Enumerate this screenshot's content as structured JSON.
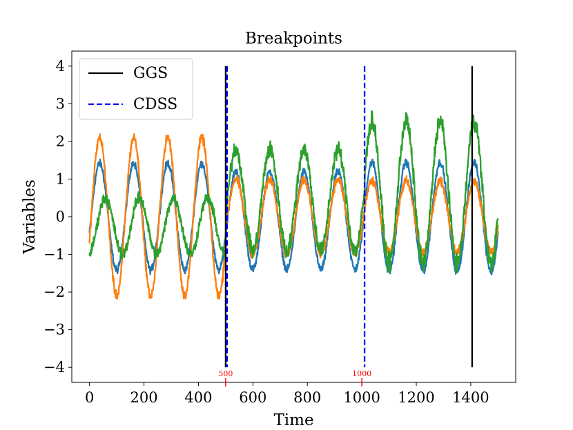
{
  "chart_data": {
    "type": "line",
    "title": "Breakpoints",
    "xlabel": "Time",
    "ylabel": "Variables",
    "xlim": [
      -65,
      1565
    ],
    "ylim": [
      -4.4,
      4.4
    ],
    "xticks": [
      0,
      200,
      400,
      600,
      800,
      1000,
      1200,
      1400
    ],
    "yticks": [
      -4,
      -3,
      -2,
      -1,
      0,
      1,
      2,
      3,
      4
    ],
    "xtick_labels": [
      "0",
      "200",
      "400",
      "600",
      "800",
      "1000",
      "1200",
      "1400"
    ],
    "ytick_labels": [
      "−4",
      "−3",
      "−2",
      "−1",
      "0",
      "1",
      "2",
      "3",
      "4"
    ],
    "legend": {
      "location": "upper-left",
      "entries": [
        {
          "label": "GGS",
          "color": "#000000",
          "style": "solid"
        },
        {
          "label": "CDSS",
          "color": "#0000ff",
          "style": "dashed"
        }
      ]
    },
    "breakpoints": [
      {
        "method": "GGS",
        "x": 500,
        "color": "#000000",
        "style": "solid",
        "y_range": [
          -4,
          4
        ]
      },
      {
        "method": "GGS",
        "x": 1405,
        "color": "#000000",
        "style": "solid",
        "y_range": [
          -4,
          4
        ]
      },
      {
        "method": "CDSS",
        "x": 505,
        "color": "#0000ff",
        "style": "dashed",
        "y_range": [
          -4,
          4
        ]
      },
      {
        "method": "CDSS",
        "x": 1010,
        "color": "#0000ff",
        "style": "dashed",
        "y_range": [
          -4,
          4
        ]
      }
    ],
    "annotations": [
      {
        "text": "500",
        "x": 500,
        "color": "#ff0000"
      },
      {
        "text": "1000",
        "x": 1000,
        "color": "#ff0000"
      }
    ],
    "series": [
      {
        "name": "series-blue",
        "color": "#1f77b4",
        "segments": [
          {
            "x_start": 0,
            "x_end": 500,
            "period": 125,
            "amplitude": 1.42,
            "offset": 0.0,
            "phase_deg": 0,
            "noise": 0.08
          },
          {
            "x_start": 500,
            "x_end": 1010,
            "period": 125,
            "amplitude": 1.3,
            "offset": -0.1,
            "phase_deg": 0,
            "noise": 0.08
          },
          {
            "x_start": 1010,
            "x_end": 1500,
            "period": 125,
            "amplitude": 1.45,
            "offset": 0.0,
            "phase_deg": 0,
            "noise": 0.08
          }
        ]
      },
      {
        "name": "series-orange",
        "color": "#ff7f0e",
        "segments": [
          {
            "x_start": 0,
            "x_end": 500,
            "period": 125,
            "amplitude": 2.1,
            "offset": 0.0,
            "phase_deg": 0,
            "noise": 0.1
          },
          {
            "x_start": 500,
            "x_end": 1010,
            "period": 125,
            "amplitude": 1.0,
            "offset": 0.0,
            "phase_deg": 0,
            "noise": 0.1
          },
          {
            "x_start": 1010,
            "x_end": 1500,
            "period": 125,
            "amplitude": 0.95,
            "offset": 0.0,
            "phase_deg": 0,
            "noise": 0.1
          }
        ]
      },
      {
        "name": "series-green",
        "color": "#2ca02c",
        "segments": [
          {
            "x_start": 0,
            "x_end": 500,
            "period": 125,
            "amplitude": 0.75,
            "offset": -0.25,
            "phase_deg": -60,
            "noise": 0.12
          },
          {
            "x_start": 500,
            "x_end": 1010,
            "period": 125,
            "amplitude": 1.35,
            "offset": 0.45,
            "phase_deg": 0,
            "noise": 0.18
          },
          {
            "x_start": 1010,
            "x_end": 1500,
            "period": 125,
            "amplitude": 1.9,
            "offset": 0.65,
            "phase_deg": 0,
            "noise": 0.2
          }
        ]
      }
    ]
  }
}
